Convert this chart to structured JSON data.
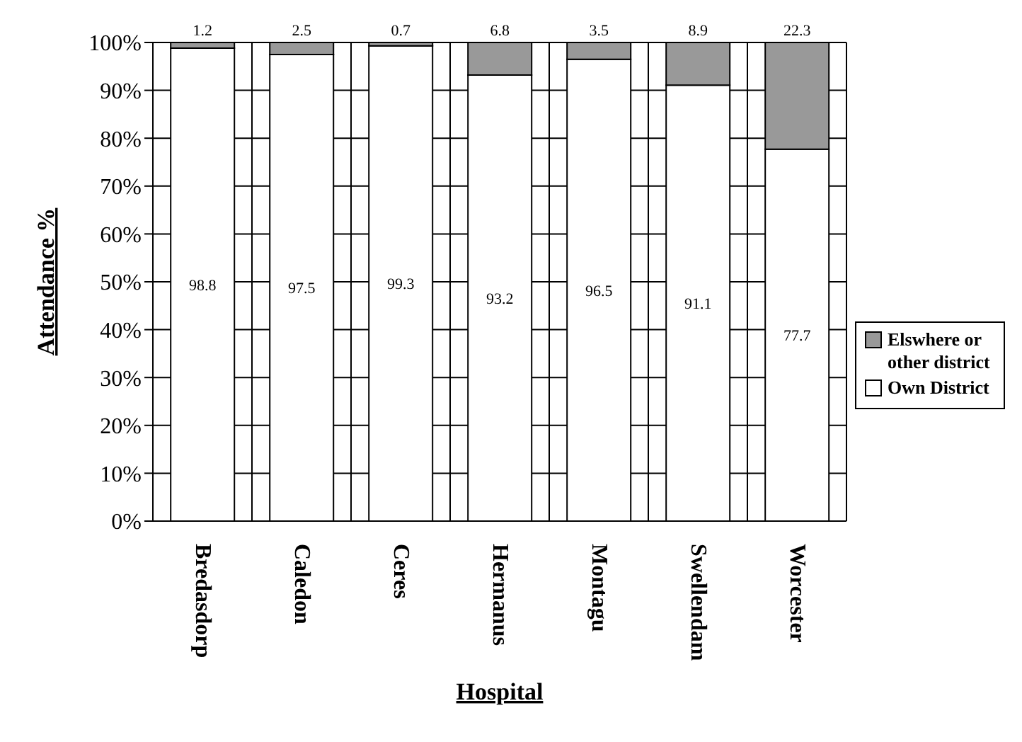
{
  "chart_data": {
    "type": "bar",
    "stacked": true,
    "xlabel": "Hospital",
    "ylabel": "Attendance %",
    "categories": [
      "Bredasdorp",
      "Caledon",
      "Ceres",
      "Hermanus",
      "Montagu",
      "Swellendam",
      "Worcester"
    ],
    "series": [
      {
        "name": "Own District",
        "color": "#ffffff",
        "values": [
          98.8,
          97.5,
          99.3,
          93.2,
          96.5,
          91.1,
          77.7
        ]
      },
      {
        "name": "Elswhere or other district",
        "color": "#999999",
        "values": [
          1.2,
          2.5,
          0.7,
          6.8,
          3.5,
          8.9,
          22.3
        ]
      }
    ],
    "ylim": [
      0,
      100
    ],
    "yticks": [
      {
        "value": 0,
        "label": "0%"
      },
      {
        "value": 10,
        "label": "10%"
      },
      {
        "value": 20,
        "label": "20%"
      },
      {
        "value": 30,
        "label": "30%"
      },
      {
        "value": 40,
        "label": "40%"
      },
      {
        "value": 50,
        "label": "50%"
      },
      {
        "value": 60,
        "label": "60%"
      },
      {
        "value": 70,
        "label": "70%"
      },
      {
        "value": 80,
        "label": "80%"
      },
      {
        "value": 90,
        "label": "90%"
      },
      {
        "value": 100,
        "label": "100%"
      }
    ],
    "grid": true,
    "legend": "right",
    "data_labels": true
  }
}
